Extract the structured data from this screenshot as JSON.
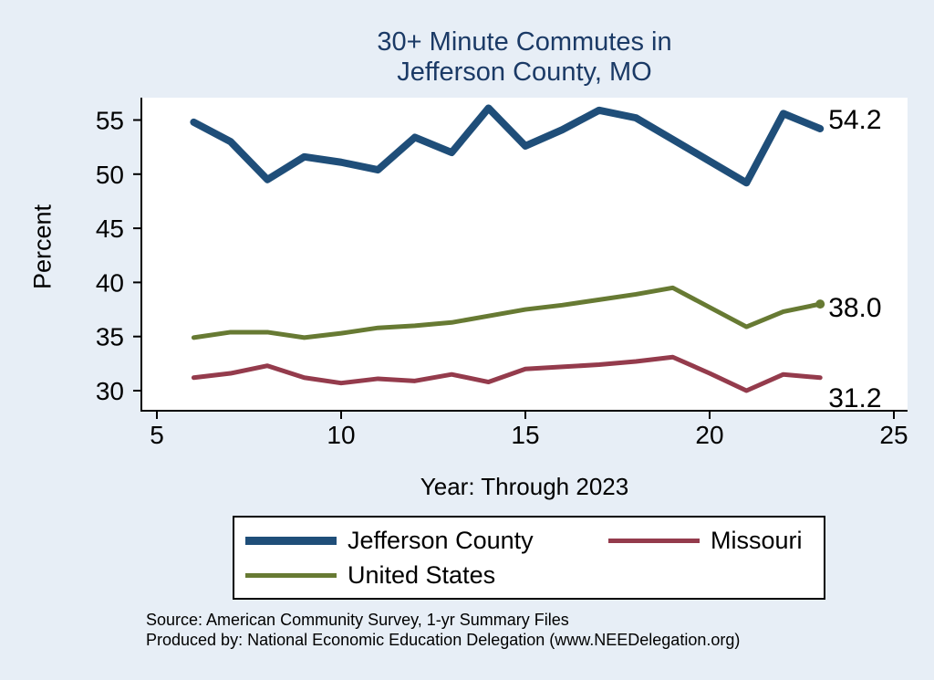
{
  "title": {
    "line1": "30+ Minute Commutes in",
    "line2": "Jefferson County, MO"
  },
  "axes": {
    "y_label": "Percent",
    "x_label": "Year: Through 2023"
  },
  "footer": {
    "line1": "Source: American Community Survey, 1-yr Summary Files",
    "line2": "Produced by: National Economic Education Delegation (www.NEEDelegation.org)"
  },
  "colors": {
    "background": "#e7eef6",
    "plot_background": "#ffffff",
    "title_color": "#1b3a66",
    "axis_color": "#000000"
  },
  "chart_data": {
    "type": "line",
    "title": "30+ Minute Commutes in Jefferson County, MO",
    "xlabel": "Year: Through 2023",
    "ylabel": "Percent",
    "xlim": [
      5,
      25
    ],
    "ylim": [
      30,
      55
    ],
    "xticks": [
      5,
      10,
      15,
      20,
      25
    ],
    "yticks": [
      30,
      35,
      40,
      45,
      50,
      55
    ],
    "grid": false,
    "legend_position": "bottom",
    "x": [
      6,
      7,
      8,
      9,
      10,
      11,
      12,
      13,
      14,
      15,
      16,
      17,
      18,
      19,
      20,
      21,
      22,
      23
    ],
    "series": [
      {
        "name": "Jefferson County",
        "slug": "jefferson-county",
        "color": "#1f4e79",
        "width": 8,
        "end_label": "54.2",
        "end_dot": false,
        "values": [
          54.8,
          53.0,
          49.5,
          51.6,
          51.1,
          50.4,
          53.4,
          52.0,
          56.1,
          52.6,
          54.1,
          55.9,
          55.2,
          53.2,
          51.2,
          49.2,
          55.6,
          54.2
        ]
      },
      {
        "name": "Missouri",
        "slug": "missouri",
        "color": "#943b4c",
        "width": 5,
        "end_label": "31.2",
        "end_dot": false,
        "values": [
          31.2,
          31.6,
          32.3,
          31.2,
          30.7,
          31.1,
          30.9,
          31.5,
          30.8,
          32.0,
          32.2,
          32.4,
          32.7,
          33.1,
          31.6,
          30.0,
          31.5,
          31.2
        ]
      },
      {
        "name": "United States",
        "slug": "united-states",
        "color": "#677a33",
        "width": 5,
        "end_label": "38.0",
        "end_dot": true,
        "values": [
          34.9,
          35.4,
          35.4,
          34.9,
          35.3,
          35.8,
          36.0,
          36.3,
          36.9,
          37.5,
          37.9,
          38.4,
          38.9,
          39.5,
          37.7,
          35.9,
          37.3,
          38.0
        ]
      }
    ]
  }
}
